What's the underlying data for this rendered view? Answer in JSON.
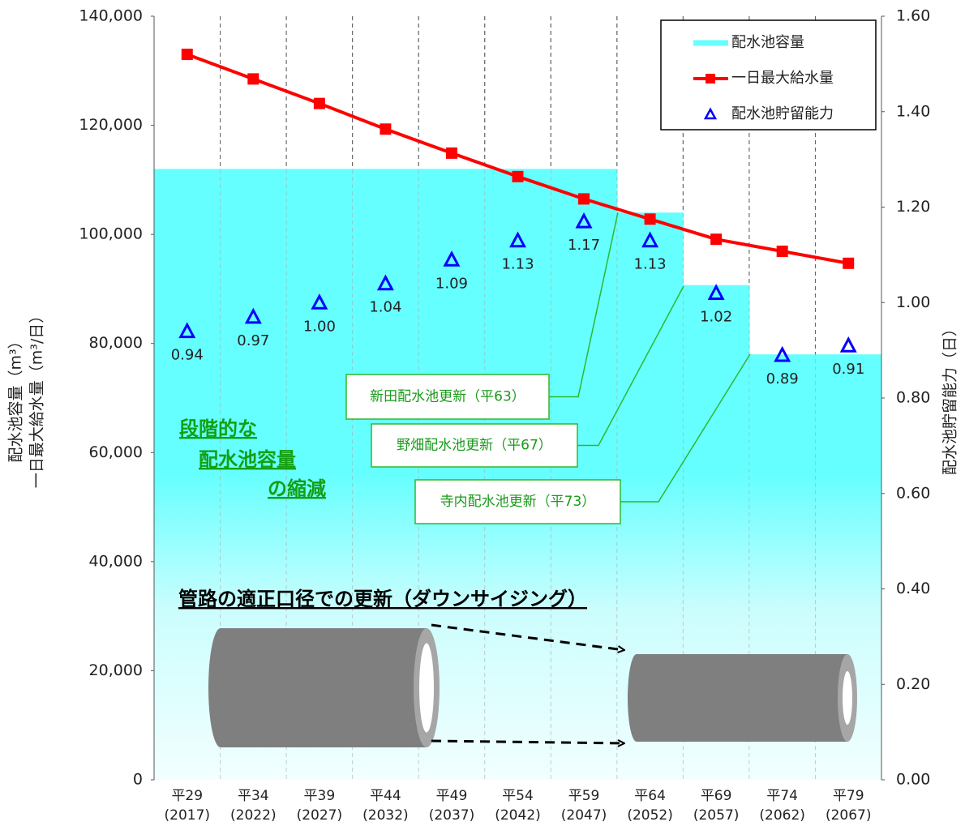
{
  "chart_data": {
    "type": "combo",
    "categories": [
      [
        "平29",
        "(2017)"
      ],
      [
        "平34",
        "(2022)"
      ],
      [
        "平39",
        "(2027)"
      ],
      [
        "平44",
        "(2032)"
      ],
      [
        "平49",
        "(2037)"
      ],
      [
        "平54",
        "(2042)"
      ],
      [
        "平59",
        "(2047)"
      ],
      [
        "平64",
        "(2052)"
      ],
      [
        "平69",
        "(2057)"
      ],
      [
        "平74",
        "(2062)"
      ],
      [
        "平79",
        "(2067)"
      ]
    ],
    "ylabel": [
      "配水池容量（m³）",
      "一日最大給水量（m³/日）"
    ],
    "y2label": "配水池貯留能力（日）",
    "ylim": [
      0,
      140000
    ],
    "yticks": [
      0,
      {
        "value": 20000,
        "label": "20,000"
      },
      {
        "value": 40000,
        "label": "40,000"
      },
      {
        "value": 60000,
        "label": "60,000"
      },
      {
        "value": 80000,
        "label": "80,000"
      },
      {
        "value": 100000,
        "label": "100,000"
      },
      {
        "value": 120000,
        "label": "120,000"
      },
      {
        "value": 140000,
        "label": "140,000"
      }
    ],
    "y2lim": [
      0,
      1.6
    ],
    "y2ticks": [
      {
        "value": 0,
        "label": "0.00"
      },
      {
        "value": 0.2,
        "label": "0.20"
      },
      {
        "value": 0.4,
        "label": "0.40"
      },
      {
        "value": 0.6,
        "label": "0.60"
      },
      {
        "value": 0.8,
        "label": "0.80"
      },
      {
        "value": 1.0,
        "label": "1.00"
      },
      {
        "value": 1.2,
        "label": "1.20"
      },
      {
        "value": 1.4,
        "label": "1.40"
      },
      {
        "value": 1.6,
        "label": "1.60"
      }
    ],
    "series": [
      {
        "name": "配水池容量",
        "type": "bar",
        "color": "#66ffff",
        "values": [
          112000,
          112000,
          112000,
          112000,
          112000,
          112000,
          112000,
          104000,
          90700,
          78000,
          78000
        ]
      },
      {
        "name": "一日最大給水量",
        "type": "line",
        "color": "#ff0000",
        "values": [
          133000,
          128500,
          124000,
          119300,
          114900,
          110600,
          106500,
          102800,
          99100,
          96900,
          94700
        ]
      },
      {
        "name": "配水池貯留能力",
        "type": "scatter",
        "color": "#0000ff",
        "axis": "y2",
        "values": [
          0.94,
          0.97,
          1.0,
          1.04,
          1.09,
          1.13,
          1.17,
          1.13,
          1.02,
          0.89,
          0.91
        ],
        "value_labels": [
          "0.94",
          "0.97",
          "1.00",
          "1.04",
          "1.09",
          "1.13",
          "1.17",
          "1.13",
          "1.02",
          "0.89",
          "0.91"
        ]
      }
    ],
    "legend": "top-right",
    "annotations": [
      "新田配水池更新（平63）",
      "野畑配水池更新（平67）",
      "寺内配水池更新（平73）"
    ],
    "callout": [
      "段階的な",
      "配水池容量",
      "の縮減"
    ],
    "note": "管路の適正口径での更新（ダウンサイジング）"
  }
}
